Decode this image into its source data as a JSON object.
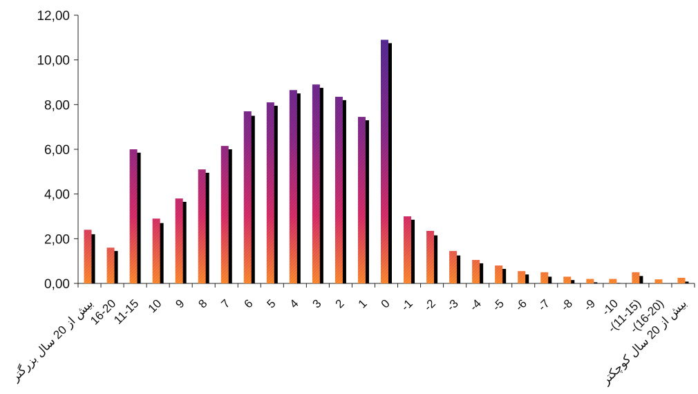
{
  "chart_data": {
    "type": "bar",
    "title": "",
    "xlabel": "",
    "ylabel": "",
    "ylim": [
      0,
      12
    ],
    "yticks": [
      "0,00",
      "2,00",
      "4,00",
      "6,00",
      "8,00",
      "10,00",
      "12,00"
    ],
    "categories": [
      "بیش از 20 سال بزرگتر",
      "16-20",
      "11-15",
      "10",
      "9",
      "8",
      "7",
      "6",
      "5",
      "4",
      "3",
      "2",
      "1",
      "0",
      "-1",
      "-2",
      "-3",
      "-4",
      "-5",
      "-6",
      "-7",
      "-8",
      "-9",
      "-10",
      "-(11-15)",
      "-(16-20)",
      "بیش از 20 سال کوچکتر"
    ],
    "series": [
      {
        "values": [
          2.4,
          1.6,
          6.0,
          2.9,
          3.8,
          5.1,
          6.15,
          7.7,
          8.1,
          8.65,
          8.9,
          8.35,
          7.45,
          10.9,
          3.0,
          2.35,
          1.45,
          1.05,
          0.8,
          0.55,
          0.5,
          0.3,
          0.2,
          0.2,
          0.5,
          0.18,
          0.25
        ]
      },
      {
        "values": [
          2.2,
          1.45,
          5.85,
          2.7,
          3.65,
          4.95,
          6.0,
          7.5,
          7.95,
          8.5,
          8.75,
          8.2,
          7.3,
          10.75,
          2.85,
          2.15,
          1.25,
          0.9,
          0.65,
          0.4,
          0.3,
          0.15,
          0.05,
          0.02,
          0.33,
          0.0,
          0.08
        ]
      }
    ],
    "grid": false,
    "legend": "none",
    "colors": {
      "front_top": "#4a2a9a",
      "front_mid": "#c22a6e",
      "front_bottom": "#ff8a30",
      "back": "#000000",
      "axis": "#222222"
    }
  }
}
